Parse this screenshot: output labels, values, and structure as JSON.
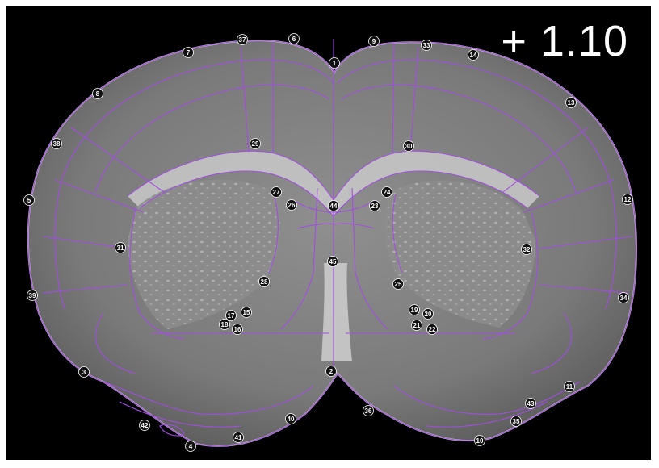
{
  "image": {
    "kind": "coronal brain section with atlas overlay and numbered landmarks",
    "coordinate_label": "+ 1.10",
    "overlay_color": "#a04ee0",
    "tissue_color": "#8a8a8a",
    "background_color": "#000000"
  },
  "landmarks": [
    "1",
    "2",
    "3",
    "4",
    "5",
    "6",
    "7",
    "8",
    "9",
    "10",
    "11",
    "12",
    "13",
    "14",
    "15",
    "16",
    "17",
    "18",
    "19",
    "20",
    "21",
    "22",
    "23",
    "24",
    "25",
    "26",
    "27",
    "28",
    "29",
    "30",
    "31",
    "32",
    "33",
    "34",
    "35",
    "36",
    "37",
    "38",
    "39",
    "40",
    "41",
    "42",
    "43",
    "44",
    "45"
  ]
}
